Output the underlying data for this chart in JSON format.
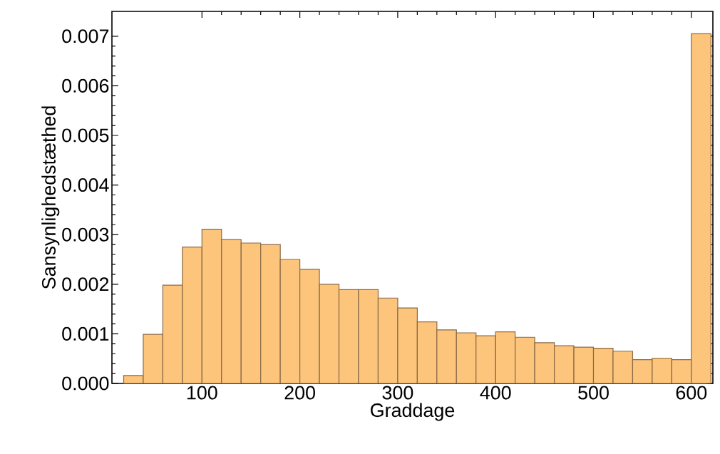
{
  "chart_data": {
    "type": "histogram",
    "xlabel": "Graddage",
    "ylabel": "Sansynlighedstæthed",
    "bins": [
      20,
      40,
      60,
      80,
      100,
      120,
      140,
      160,
      180,
      200,
      220,
      240,
      260,
      280,
      300,
      320,
      340,
      360,
      380,
      400,
      420,
      440,
      460,
      480,
      500,
      520,
      540,
      560,
      580,
      600,
      620
    ],
    "values": [
      0.00016,
      0.00099,
      0.00198,
      0.00275,
      0.00311,
      0.0029,
      0.00283,
      0.0028,
      0.0025,
      0.0023,
      0.002,
      0.00189,
      0.00189,
      0.00172,
      0.00152,
      0.00124,
      0.00108,
      0.00102,
      0.00096,
      0.00104,
      0.00093,
      0.00082,
      0.00076,
      0.00073,
      0.00071,
      0.00065,
      0.00048,
      0.00051,
      0.00048,
      0.00705
    ],
    "color": "#fdc57c",
    "xlim": [
      8,
      622
    ],
    "ylim": [
      0,
      0.0075
    ],
    "xticks": [
      100,
      200,
      300,
      400,
      500,
      600
    ],
    "yticks": [
      {
        "value": 0,
        "label": "0.000"
      },
      {
        "value": 0.001,
        "label": "0.001"
      },
      {
        "value": 0.002,
        "label": "0.002"
      },
      {
        "value": 0.003,
        "label": "0.003"
      },
      {
        "value": 0.004,
        "label": "0.004"
      },
      {
        "value": 0.005,
        "label": "0.005"
      },
      {
        "value": 0.006,
        "label": "0.006"
      },
      {
        "value": 0.007,
        "label": "0.007"
      }
    ],
    "grid": false
  }
}
